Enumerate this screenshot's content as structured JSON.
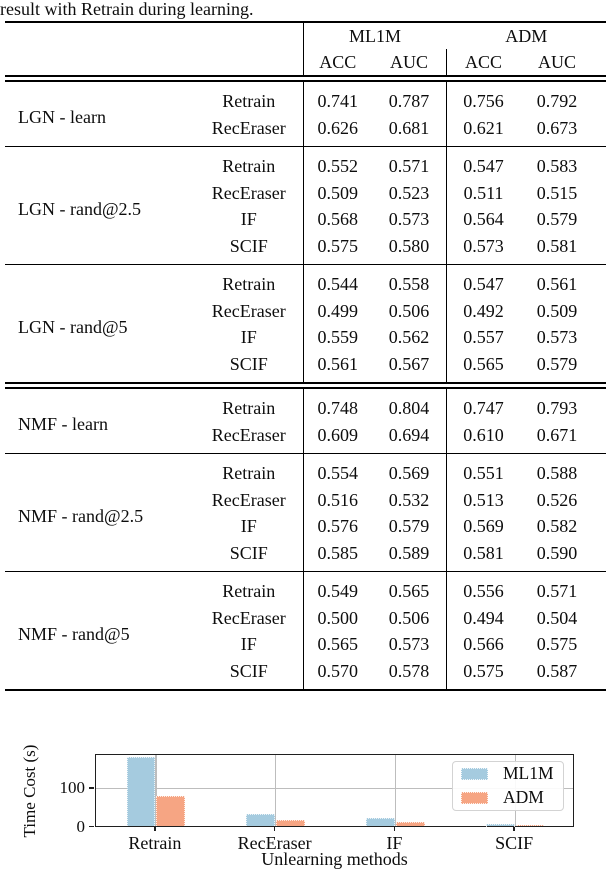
{
  "caption": "result with Retrain during learning.",
  "table": {
    "header": {
      "group1": "ML1M",
      "group2": "ADM",
      "sub": [
        "ACC",
        "AUC",
        "ACC",
        "AUC"
      ]
    },
    "groups": [
      {
        "label": "LGN - learn",
        "rule_after": "single",
        "rows": [
          {
            "method": "Retrain",
            "values": [
              "0.741",
              "0.787",
              "0.756",
              "0.792"
            ]
          },
          {
            "method": "RecEraser",
            "values": [
              "0.626",
              "0.681",
              "0.621",
              "0.673"
            ]
          }
        ]
      },
      {
        "label": "LGN - rand@2.5",
        "rule_after": "single",
        "rows": [
          {
            "method": "Retrain",
            "values": [
              "0.552",
              "0.571",
              "0.547",
              "0.583"
            ]
          },
          {
            "method": "RecEraser",
            "values": [
              "0.509",
              "0.523",
              "0.511",
              "0.515"
            ]
          },
          {
            "method": "IF",
            "values": [
              "0.568",
              "0.573",
              "0.564",
              "0.579"
            ]
          },
          {
            "method": "SCIF",
            "values": [
              "0.575",
              "0.580",
              "0.573",
              "0.581"
            ]
          }
        ]
      },
      {
        "label": "LGN - rand@5",
        "rule_after": "double",
        "rows": [
          {
            "method": "Retrain",
            "values": [
              "0.544",
              "0.558",
              "0.547",
              "0.561"
            ]
          },
          {
            "method": "RecEraser",
            "values": [
              "0.499",
              "0.506",
              "0.492",
              "0.509"
            ]
          },
          {
            "method": "IF",
            "values": [
              "0.559",
              "0.562",
              "0.557",
              "0.573"
            ]
          },
          {
            "method": "SCIF",
            "values": [
              "0.561",
              "0.567",
              "0.565",
              "0.579"
            ]
          }
        ]
      },
      {
        "label": "NMF - learn",
        "rule_after": "single",
        "rows": [
          {
            "method": "Retrain",
            "values": [
              "0.748",
              "0.804",
              "0.747",
              "0.793"
            ]
          },
          {
            "method": "RecEraser",
            "values": [
              "0.609",
              "0.694",
              "0.610",
              "0.671"
            ]
          }
        ]
      },
      {
        "label": "NMF - rand@2.5",
        "rule_after": "single",
        "rows": [
          {
            "method": "Retrain",
            "values": [
              "0.554",
              "0.569",
              "0.551",
              "0.588"
            ]
          },
          {
            "method": "RecEraser",
            "values": [
              "0.516",
              "0.532",
              "0.513",
              "0.526"
            ]
          },
          {
            "method": "IF",
            "values": [
              "0.576",
              "0.579",
              "0.569",
              "0.582"
            ]
          },
          {
            "method": "SCIF",
            "values": [
              "0.585",
              "0.589",
              "0.581",
              "0.590"
            ]
          }
        ]
      },
      {
        "label": "NMF - rand@5",
        "rule_after": "heavy",
        "rows": [
          {
            "method": "Retrain",
            "values": [
              "0.549",
              "0.565",
              "0.556",
              "0.571"
            ]
          },
          {
            "method": "RecEraser",
            "values": [
              "0.500",
              "0.506",
              "0.494",
              "0.504"
            ]
          },
          {
            "method": "IF",
            "values": [
              "0.565",
              "0.573",
              "0.566",
              "0.575"
            ]
          },
          {
            "method": "SCIF",
            "values": [
              "0.570",
              "0.578",
              "0.575",
              "0.587"
            ]
          }
        ]
      }
    ]
  },
  "chart_data": {
    "type": "bar",
    "title": "",
    "xlabel": "Unlearning methods",
    "ylabel": "Time Cost (s)",
    "categories": [
      "Retrain",
      "RecEraser",
      "IF",
      "SCIF"
    ],
    "series": [
      {
        "name": "ML1M",
        "color": "#a5cbdf",
        "values": [
          178,
          30,
          20,
          3
        ]
      },
      {
        "name": "ADM",
        "color": "#f6a583",
        "values": [
          76,
          15,
          10,
          1.5
        ]
      }
    ],
    "ylim": [
      0,
      187
    ],
    "yticks": [
      0,
      100
    ],
    "grid": true,
    "legend_position": "upper right",
    "colors": {
      "grid": "#bdbdbd",
      "axis": "#1f1f1f"
    }
  }
}
